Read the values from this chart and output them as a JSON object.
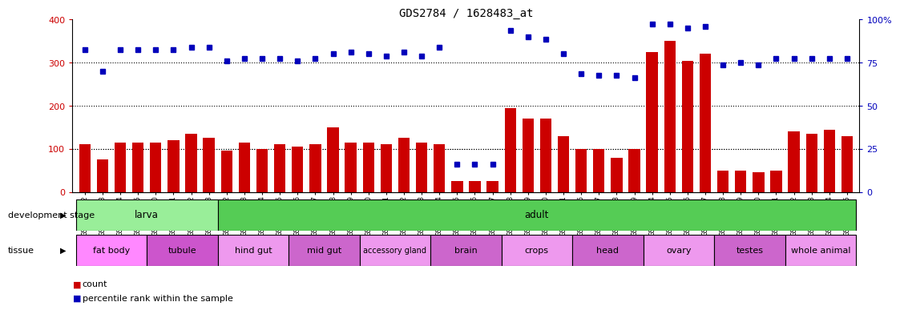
{
  "title": "GDS2784 / 1628483_at",
  "samples": [
    "GSM188092",
    "GSM188093",
    "GSM188094",
    "GSM188095",
    "GSM188100",
    "GSM188101",
    "GSM188102",
    "GSM188103",
    "GSM188072",
    "GSM188073",
    "GSM188074",
    "GSM188075",
    "GSM188076",
    "GSM188077",
    "GSM188078",
    "GSM188079",
    "GSM188080",
    "GSM188081",
    "GSM188082",
    "GSM188083",
    "GSM188084",
    "GSM188085",
    "GSM188086",
    "GSM188087",
    "GSM188088",
    "GSM188089",
    "GSM188090",
    "GSM188091",
    "GSM188096",
    "GSM188097",
    "GSM188098",
    "GSM188099",
    "GSM188104",
    "GSM188105",
    "GSM188106",
    "GSM188107",
    "GSM188108",
    "GSM188109",
    "GSM188110",
    "GSM188111",
    "GSM188112",
    "GSM188113",
    "GSM188114",
    "GSM188115"
  ],
  "counts": [
    110,
    75,
    115,
    115,
    115,
    120,
    135,
    125,
    95,
    115,
    100,
    110,
    105,
    110,
    150,
    115,
    115,
    110,
    125,
    115,
    110,
    25,
    25,
    25,
    195,
    170,
    170,
    130,
    100,
    100,
    80,
    100,
    325,
    350,
    305,
    320,
    50,
    50,
    45,
    50,
    140,
    135,
    145,
    130
  ],
  "percentiles": [
    330,
    280,
    330,
    330,
    330,
    330,
    335,
    335,
    305,
    310,
    310,
    310,
    305,
    310,
    320,
    325,
    320,
    315,
    325,
    315,
    335,
    65,
    65,
    65,
    375,
    360,
    355,
    320,
    275,
    270,
    270,
    265,
    390,
    390,
    380,
    385,
    295,
    300,
    295,
    310,
    310,
    310,
    310,
    310
  ],
  "development_stages": [
    {
      "label": "larva",
      "start": 0,
      "end": 8,
      "color": "#99EE99"
    },
    {
      "label": "adult",
      "start": 8,
      "end": 44,
      "color": "#55CC55"
    }
  ],
  "tissues": [
    {
      "label": "fat body",
      "start": 0,
      "end": 4,
      "color": "#FF88FF"
    },
    {
      "label": "tubule",
      "start": 4,
      "end": 8,
      "color": "#CC55CC"
    },
    {
      "label": "hind gut",
      "start": 8,
      "end": 12,
      "color": "#EE99EE"
    },
    {
      "label": "mid gut",
      "start": 12,
      "end": 16,
      "color": "#CC66CC"
    },
    {
      "label": "accessory gland",
      "start": 16,
      "end": 20,
      "color": "#EE99EE"
    },
    {
      "label": "brain",
      "start": 20,
      "end": 24,
      "color": "#CC66CC"
    },
    {
      "label": "crops",
      "start": 24,
      "end": 28,
      "color": "#EE99EE"
    },
    {
      "label": "head",
      "start": 28,
      "end": 32,
      "color": "#CC66CC"
    },
    {
      "label": "ovary",
      "start": 32,
      "end": 36,
      "color": "#EE99EE"
    },
    {
      "label": "testes",
      "start": 36,
      "end": 40,
      "color": "#CC66CC"
    },
    {
      "label": "whole animal",
      "start": 40,
      "end": 44,
      "color": "#EE99EE"
    }
  ],
  "bar_color": "#CC0000",
  "dot_color": "#0000BB",
  "left_ylim": [
    0,
    400
  ],
  "left_yticks": [
    0,
    100,
    200,
    300,
    400
  ],
  "right_yticks": [
    0,
    25,
    50,
    75,
    100
  ],
  "right_yticklabels": [
    "0",
    "25",
    "50",
    "75",
    "100%"
  ],
  "grid_values": [
    100,
    200,
    300
  ],
  "background_color": "#ffffff"
}
